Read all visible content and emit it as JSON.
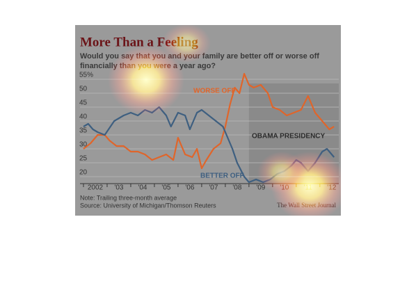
{
  "chart_data": {
    "type": "line",
    "title": "More Than a Feeling",
    "subtitle": "Would you say that you and your family are better off or worse off financially than you were a year ago?",
    "note": "Note: Trailing three-month average",
    "source": "Source: University of Michigan/Thomson Reuters",
    "credit": "The Wall Street Journal",
    "highlight": {
      "label": "OBAMA PRESIDENCY",
      "start": 2009
    },
    "xlim": [
      2002,
      2012.8
    ],
    "ylim": [
      17.5,
      58
    ],
    "xticks": [
      {
        "value": 2002.5,
        "label": "2002"
      },
      {
        "value": 2003.5,
        "label": "'03"
      },
      {
        "value": 2004.5,
        "label": "'04"
      },
      {
        "value": 2005.5,
        "label": "'05"
      },
      {
        "value": 2006.5,
        "label": "'06"
      },
      {
        "value": 2007.5,
        "label": "'07"
      },
      {
        "value": 2008.5,
        "label": "'08"
      },
      {
        "value": 2009.5,
        "label": "'09"
      },
      {
        "value": 2010.5,
        "label": "'10"
      },
      {
        "value": 2011.5,
        "label": "'11"
      },
      {
        "value": 2012.5,
        "label": "'12"
      }
    ],
    "yticks": [
      {
        "value": 55,
        "label": "55%"
      },
      50,
      45,
      40,
      35,
      30,
      25,
      20
    ],
    "grid": true,
    "series": [
      {
        "name": "WORSE OFF",
        "color": "#e0652a",
        "x": [
          2002.0,
          2002.3,
          2002.6,
          2002.9,
          2003.1,
          2003.4,
          2003.7,
          2004.0,
          2004.3,
          2004.6,
          2004.9,
          2005.2,
          2005.5,
          2005.8,
          2006.0,
          2006.3,
          2006.6,
          2006.8,
          2007.0,
          2007.2,
          2007.5,
          2007.8,
          2008.0,
          2008.2,
          2008.4,
          2008.6,
          2008.8,
          2009.0,
          2009.2,
          2009.5,
          2009.8,
          2010.0,
          2010.3,
          2010.6,
          2010.9,
          2011.2,
          2011.5,
          2011.8,
          2012.1,
          2012.4,
          2012.6
        ],
        "values": [
          30,
          32,
          35,
          35,
          33,
          31,
          31,
          29,
          29,
          28,
          26,
          27,
          28,
          26,
          34,
          28,
          27,
          30,
          23,
          26,
          30,
          32,
          38,
          46,
          52,
          50,
          57,
          53,
          52,
          53,
          50,
          45,
          44,
          42,
          43,
          44,
          49,
          43,
          40,
          37,
          38
        ]
      },
      {
        "name": "BETTER OFF",
        "color": "#3e5f80",
        "x": [
          2002.0,
          2002.2,
          2002.4,
          2002.6,
          2002.9,
          2003.3,
          2003.7,
          2004.0,
          2004.3,
          2004.6,
          2004.9,
          2005.2,
          2005.5,
          2005.7,
          2006.0,
          2006.3,
          2006.5,
          2006.8,
          2007.0,
          2007.3,
          2007.6,
          2007.9,
          2008.1,
          2008.3,
          2008.5,
          2008.8,
          2009.0,
          2009.3,
          2009.6,
          2009.9,
          2010.2,
          2010.5,
          2010.8,
          2011.0,
          2011.2,
          2011.5,
          2011.8,
          2012.1,
          2012.3,
          2012.6
        ],
        "values": [
          38,
          39,
          37,
          36,
          35,
          40,
          42,
          43,
          42,
          44,
          43,
          45,
          42,
          38,
          43,
          42,
          37,
          43,
          44,
          42,
          40,
          38,
          34,
          30,
          25,
          20,
          18,
          19,
          18,
          19,
          21,
          22,
          24,
          26,
          25,
          22,
          25,
          29,
          30,
          27
        ]
      }
    ]
  }
}
